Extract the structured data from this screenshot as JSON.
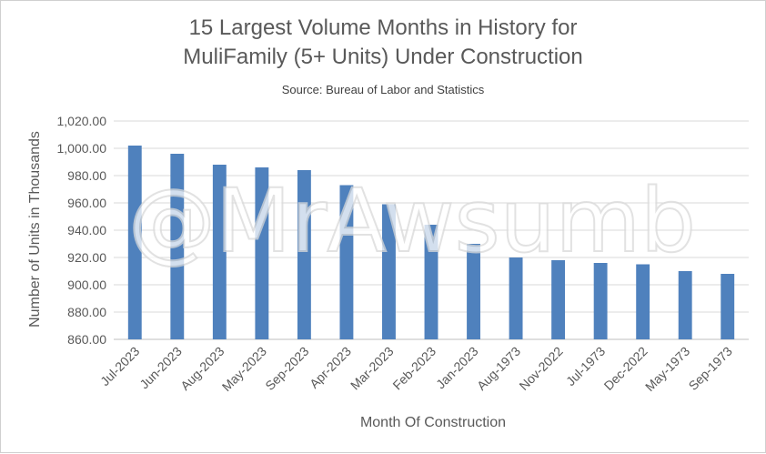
{
  "chart_data": {
    "type": "bar",
    "title_line1": "15 Largest Volume Months in History for",
    "title_line2": "MuliFamily (5+ Units) Under Construction",
    "subtitle": "Source: Bureau of Labor and Statistics",
    "xlabel": "Month Of Construction",
    "ylabel": "Number of Units in Thousands",
    "watermark": "@MrAwsumb",
    "categories": [
      "Jul-2023",
      "Jun-2023",
      "Aug-2023",
      "May-2023",
      "Sep-2023",
      "Apr-2023",
      "Mar-2023",
      "Feb-2023",
      "Jan-2023",
      "Aug-1973",
      "Nov-2022",
      "Jul-1973",
      "Dec-2022",
      "May-1973",
      "Sep-1973"
    ],
    "values": [
      1002,
      996,
      988,
      986,
      984,
      973,
      959,
      944,
      930,
      920,
      918,
      916,
      915,
      910,
      908
    ],
    "ylim": [
      860,
      1020
    ],
    "yticks": [
      "860.00",
      "880.00",
      "900.00",
      "920.00",
      "940.00",
      "960.00",
      "980.00",
      "1,000.00",
      "1,020.00"
    ],
    "grid": true,
    "bar_color": "#4f81bd"
  }
}
